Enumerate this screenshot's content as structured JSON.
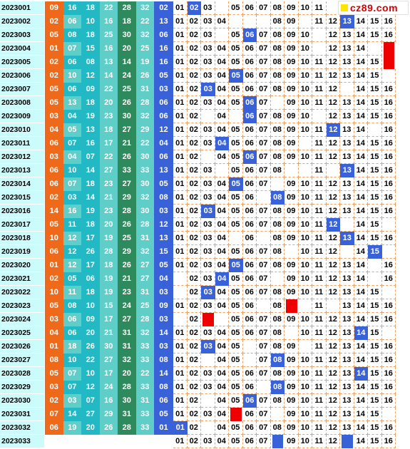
{
  "logo": {
    "text": "cz89.com",
    "mark_color": "#ffe600"
  },
  "colors": {
    "issue_bg": "#ccfbfb",
    "red_palette": [
      "#ee6a1a",
      "#22b8c4",
      "#2c8a5c",
      "#5fcdc8"
    ],
    "blue_ball_bg": "#3a62d8",
    "grid_dash": "#f0a060",
    "hit_bg": "#3a62d8",
    "mark_red": "#ee0000"
  },
  "rows": [
    {
      "issue": "2023001",
      "red": [
        "09",
        "16",
        "18",
        "22",
        "28",
        "32"
      ],
      "blue": "02",
      "grid": [
        "01",
        "H:02",
        "03",
        "",
        "05",
        "06",
        "07",
        "08",
        "09",
        "10",
        "11",
        "",
        "",
        "",
        "",
        ""
      ]
    },
    {
      "issue": "2023002",
      "red": [
        "02",
        "06",
        "10",
        "16",
        "18",
        "22"
      ],
      "blue": "13",
      "grid": [
        "01",
        "02",
        "03",
        "04",
        "",
        "",
        "",
        "08",
        "09",
        "",
        "11",
        "12",
        "H:13",
        "14",
        "15",
        "16"
      ]
    },
    {
      "issue": "2023003",
      "red": [
        "05",
        "08",
        "18",
        "25",
        "30",
        "32"
      ],
      "blue": "06",
      "grid": [
        "01",
        "02",
        "03",
        "",
        "05",
        "H:06",
        "07",
        "08",
        "09",
        "10",
        "",
        "12",
        "13",
        "14",
        "15",
        "16"
      ]
    },
    {
      "issue": "2023004",
      "red": [
        "01",
        "07",
        "15",
        "16",
        "20",
        "25"
      ],
      "blue": "16",
      "grid": [
        "01",
        "02",
        "03",
        "04",
        "05",
        "06",
        "07",
        "08",
        "09",
        "10",
        "",
        "12",
        "13",
        "14",
        "",
        "M"
      ]
    },
    {
      "issue": "2023005",
      "red": [
        "02",
        "06",
        "08",
        "13",
        "14",
        "19"
      ],
      "blue": "16",
      "grid": [
        "01",
        "02",
        "03",
        "04",
        "05",
        "06",
        "07",
        "08",
        "09",
        "10",
        "11",
        "12",
        "13",
        "14",
        "15",
        "M"
      ]
    },
    {
      "issue": "2023006",
      "red": [
        "02",
        "10",
        "12",
        "14",
        "24",
        "26"
      ],
      "blue": "05",
      "grid": [
        "01",
        "02",
        "03",
        "04",
        "H:05",
        "06",
        "07",
        "08",
        "09",
        "10",
        "11",
        "12",
        "13",
        "14",
        "15",
        ""
      ]
    },
    {
      "issue": "2023007",
      "red": [
        "05",
        "06",
        "09",
        "22",
        "25",
        "31"
      ],
      "blue": "03",
      "grid": [
        "01",
        "02",
        "H:03",
        "04",
        "05",
        "06",
        "07",
        "08",
        "09",
        "10",
        "11",
        "12",
        "",
        "14",
        "15",
        "16"
      ]
    },
    {
      "issue": "2023008",
      "red": [
        "05",
        "13",
        "18",
        "20",
        "26",
        "28"
      ],
      "blue": "06",
      "grid": [
        "01",
        "02",
        "03",
        "04",
        "05",
        "H:06",
        "07",
        "",
        "09",
        "10",
        "11",
        "12",
        "13",
        "14",
        "15",
        "16"
      ]
    },
    {
      "issue": "2023009",
      "red": [
        "03",
        "04",
        "19",
        "23",
        "30",
        "32"
      ],
      "blue": "06",
      "grid": [
        "01",
        "02",
        "",
        "04",
        "",
        "H:06",
        "07",
        "08",
        "09",
        "10",
        "",
        "12",
        "13",
        "14",
        "15",
        "16"
      ]
    },
    {
      "issue": "2023010",
      "red": [
        "04",
        "05",
        "13",
        "18",
        "27",
        "29"
      ],
      "blue": "12",
      "grid": [
        "01",
        "02",
        "03",
        "04",
        "05",
        "06",
        "07",
        "08",
        "09",
        "10",
        "11",
        "H:12",
        "13",
        "14",
        "",
        "16"
      ]
    },
    {
      "issue": "2023011",
      "red": [
        "06",
        "07",
        "16",
        "17",
        "21",
        "22"
      ],
      "blue": "04",
      "grid": [
        "01",
        "02",
        "03",
        "H:04",
        "05",
        "06",
        "07",
        "08",
        "09",
        "",
        "11",
        "12",
        "13",
        "14",
        "15",
        "16"
      ]
    },
    {
      "issue": "2023012",
      "red": [
        "03",
        "04",
        "07",
        "22",
        "26",
        "30"
      ],
      "blue": "06",
      "grid": [
        "01",
        "02",
        "",
        "04",
        "05",
        "H:06",
        "07",
        "08",
        "09",
        "10",
        "11",
        "12",
        "13",
        "14",
        "15",
        "16"
      ]
    },
    {
      "issue": "2023013",
      "red": [
        "06",
        "10",
        "14",
        "27",
        "33",
        "33"
      ],
      "blue": "13",
      "grid": [
        "01",
        "02",
        "03",
        "",
        "05",
        "06",
        "07",
        "08",
        "",
        "",
        "11",
        "",
        "H:13",
        "14",
        "15",
        "16"
      ]
    },
    {
      "issue": "2023014",
      "red": [
        "06",
        "07",
        "18",
        "23",
        "27",
        "30"
      ],
      "blue": "05",
      "grid": [
        "01",
        "02",
        "03",
        "04",
        "H:05",
        "06",
        "07",
        "",
        "09",
        "10",
        "11",
        "12",
        "13",
        "14",
        "15",
        "16"
      ]
    },
    {
      "issue": "2023015",
      "red": [
        "02",
        "03",
        "14",
        "21",
        "29",
        "32"
      ],
      "blue": "08",
      "grid": [
        "01",
        "02",
        "03",
        "04",
        "05",
        "06",
        "",
        "H:08",
        "09",
        "10",
        "11",
        "12",
        "13",
        "14",
        "15",
        "16"
      ]
    },
    {
      "issue": "2023016",
      "red": [
        "14",
        "16",
        "19",
        "23",
        "28",
        "30"
      ],
      "blue": "03",
      "grid": [
        "01",
        "02",
        "H:03",
        "04",
        "05",
        "06",
        "07",
        "08",
        "09",
        "10",
        "11",
        "12",
        "13",
        "14",
        "15",
        "16"
      ]
    },
    {
      "issue": "2023017",
      "red": [
        "05",
        "11",
        "18",
        "20",
        "26",
        "28"
      ],
      "blue": "12",
      "grid": [
        "01",
        "02",
        "03",
        "04",
        "05",
        "06",
        "07",
        "08",
        "09",
        "10",
        "11",
        "H:12",
        "",
        "14",
        "15",
        ""
      ]
    },
    {
      "issue": "2023018",
      "red": [
        "10",
        "12",
        "17",
        "19",
        "25",
        "31"
      ],
      "blue": "13",
      "grid": [
        "01",
        "02",
        "03",
        "04",
        "",
        "06",
        "",
        "08",
        "09",
        "10",
        "11",
        "12",
        "H:13",
        "14",
        "15",
        "16"
      ]
    },
    {
      "issue": "2023019",
      "red": [
        "06",
        "12",
        "26",
        "28",
        "29",
        "32"
      ],
      "blue": "15",
      "grid": [
        "01",
        "02",
        "03",
        "04",
        "05",
        "06",
        "07",
        "08",
        "",
        "10",
        "11",
        "12",
        "",
        "14",
        "H:15",
        ""
      ]
    },
    {
      "issue": "2023020",
      "red": [
        "01",
        "12",
        "17",
        "18",
        "26",
        "27"
      ],
      "blue": "05",
      "grid": [
        "01",
        "02",
        "03",
        "04",
        "H:05",
        "06",
        "07",
        "08",
        "09",
        "10",
        "11",
        "12",
        "13",
        "14",
        "",
        "16"
      ]
    },
    {
      "issue": "2023021",
      "red": [
        "02",
        "05",
        "06",
        "19",
        "21",
        "27"
      ],
      "blue": "04",
      "grid": [
        "",
        "02",
        "03",
        "H:04",
        "05",
        "06",
        "07",
        "",
        "09",
        "10",
        "11",
        "12",
        "13",
        "14",
        "",
        "16"
      ]
    },
    {
      "issue": "2023022",
      "red": [
        "10",
        "11",
        "18",
        "19",
        "23",
        "31"
      ],
      "blue": "03",
      "grid": [
        "",
        "02",
        "H:03",
        "04",
        "05",
        "06",
        "07",
        "08",
        "09",
        "10",
        "11",
        "12",
        "13",
        "14",
        "15",
        ""
      ]
    },
    {
      "issue": "2023023",
      "red": [
        "05",
        "08",
        "10",
        "15",
        "24",
        "25"
      ],
      "blue": "09",
      "grid": [
        "01",
        "02",
        "03",
        "04",
        "05",
        "06",
        "",
        "08",
        "M",
        "",
        "11",
        "",
        "13",
        "14",
        "15",
        "16"
      ]
    },
    {
      "issue": "2023024",
      "red": [
        "03",
        "06",
        "09",
        "17",
        "27",
        "28"
      ],
      "blue": "03",
      "grid": [
        "",
        "02",
        "M",
        "",
        "05",
        "06",
        "07",
        "08",
        "09",
        "10",
        "11",
        "12",
        "13",
        "14",
        "15",
        "16"
      ]
    },
    {
      "issue": "2023025",
      "red": [
        "04",
        "06",
        "20",
        "21",
        "31",
        "32"
      ],
      "blue": "14",
      "grid": [
        "01",
        "02",
        "03",
        "04",
        "05",
        "06",
        "07",
        "08",
        "",
        "10",
        "11",
        "12",
        "13",
        "H:14",
        "15",
        ""
      ]
    },
    {
      "issue": "2023026",
      "red": [
        "01",
        "18",
        "26",
        "30",
        "31",
        "33"
      ],
      "blue": "03",
      "grid": [
        "01",
        "02",
        "H:03",
        "04",
        "05",
        "",
        "07",
        "08",
        "09",
        "",
        "11",
        "12",
        "13",
        "14",
        "15",
        "16"
      ]
    },
    {
      "issue": "2023027",
      "red": [
        "08",
        "10",
        "22",
        "27",
        "32",
        "33"
      ],
      "blue": "08",
      "grid": [
        "01",
        "02",
        "",
        "04",
        "05",
        "",
        "07",
        "H:08",
        "09",
        "10",
        "11",
        "12",
        "13",
        "14",
        "15",
        "16"
      ]
    },
    {
      "issue": "2023028",
      "red": [
        "05",
        "07",
        "10",
        "17",
        "20",
        "22"
      ],
      "blue": "14",
      "grid": [
        "01",
        "02",
        "03",
        "04",
        "05",
        "06",
        "07",
        "08",
        "09",
        "10",
        "11",
        "12",
        "13",
        "H:14",
        "15",
        "16"
      ]
    },
    {
      "issue": "2023029",
      "red": [
        "03",
        "07",
        "12",
        "24",
        "28",
        "33"
      ],
      "blue": "08",
      "grid": [
        "01",
        "02",
        "03",
        "04",
        "05",
        "06",
        "",
        "H:08",
        "09",
        "10",
        "11",
        "12",
        "13",
        "14",
        "15",
        "16"
      ]
    },
    {
      "issue": "2023030",
      "red": [
        "02",
        "03",
        "07",
        "16",
        "30",
        "31"
      ],
      "blue": "06",
      "grid": [
        "01",
        "02",
        "",
        "04",
        "05",
        "H:06",
        "07",
        "08",
        "09",
        "10",
        "11",
        "12",
        "13",
        "14",
        "15",
        "16"
      ]
    },
    {
      "issue": "2023031",
      "red": [
        "07",
        "14",
        "27",
        "29",
        "31",
        "33"
      ],
      "blue": "05",
      "grid": [
        "01",
        "02",
        "03",
        "04",
        "M",
        "06",
        "07",
        "",
        "09",
        "10",
        "11",
        "12",
        "13",
        "14",
        "15",
        ""
      ]
    },
    {
      "issue": "2023032",
      "red": [
        "06",
        "19",
        "20",
        "26",
        "28",
        "33"
      ],
      "blue": "01",
      "grid": [
        "H:01",
        "02",
        "",
        "04",
        "05",
        "06",
        "07",
        "08",
        "09",
        "10",
        "11",
        "12",
        "13",
        "14",
        "15",
        "16"
      ]
    },
    {
      "issue": "2023033",
      "red": [
        "",
        "",
        "",
        "",
        "",
        ""
      ],
      "blue": "",
      "grid": [
        "01",
        "02",
        "03",
        "04",
        "05",
        "06",
        "07",
        "B",
        "09",
        "10",
        "11",
        "12",
        "B",
        "14",
        "15",
        "16"
      ]
    }
  ]
}
